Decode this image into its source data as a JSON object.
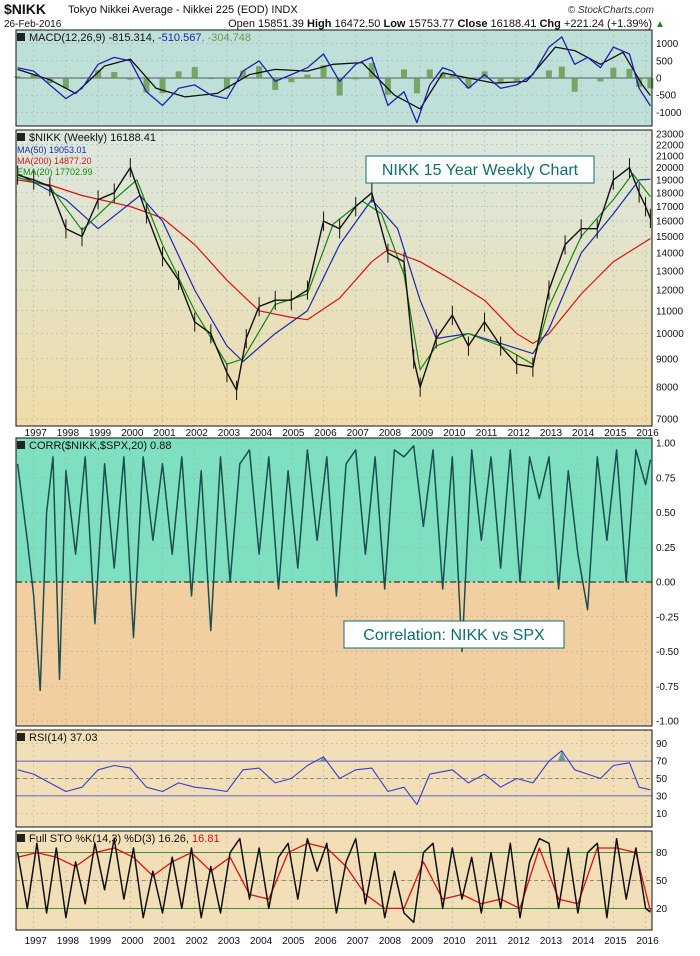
{
  "header": {
    "symbol": "$NIKK",
    "name": "Tokyo Nikkei Average - Nikkei 225 (EOD)",
    "exchange": "INDX",
    "brand": "© StockCharts.com",
    "date": "26-Feb-2016",
    "open_label": "Open",
    "open": "15851.39",
    "high_label": "High",
    "high": "16472.50",
    "low_label": "Low",
    "low": "15753.77",
    "close_label": "Close",
    "close": "16188.41",
    "chg_label": "Chg",
    "chg": "+221.24 (+1.39%)",
    "chg_arrow": "▲"
  },
  "colors": {
    "frame": "#111111",
    "macd_bg": "#bfe0d8",
    "price_bg_top": "#dbe8e0",
    "price_bg_bottom": "#f0dca8",
    "corr_pos_bg": "#7ee0c0",
    "corr_neg_bg": "#f2cfa0",
    "ind_bg": "#f2dfb8",
    "price": "#111111",
    "ma50": "#1a2ab0",
    "ma200": "#dd1111",
    "ema20": "#118811",
    "macd": "#1f1fb0",
    "macd_signal": "#111111",
    "macd_hist": "#6a9a55",
    "corr": "#1c4f50",
    "rsi": "#3340cc",
    "sto_k": "#111111",
    "sto_d": "#dd1111",
    "title_box": "#0f6e6e"
  },
  "panels": {
    "macd": {
      "label": "MACD(12,26,9) -815.314, ",
      "signal_value": "-510.567",
      "hist_value": ", -304.748",
      "ticks": [
        "1000",
        "500",
        "0",
        "-500",
        "-1000"
      ]
    },
    "price": {
      "label": "$NIKK (Weekly) 16188.41",
      "ma50_label": "MA(50) 19053.01",
      "ma200_label": "MA(200) 14877.20",
      "ema20_label": "EMA(20) 17702.99",
      "title_annotation": "NIKK 15 Year Weekly Chart",
      "ticks": [
        "23000",
        "22000",
        "21000",
        "20000",
        "19000",
        "18000",
        "17000",
        "16000",
        "15000",
        "14000",
        "13000",
        "12000",
        "11000",
        "10000",
        "9000",
        "8000",
        "7000"
      ]
    },
    "corr": {
      "label": "CORR($NIKK,$SPX,20) 0.88",
      "annotation": "Correlation:  NIKK vs SPX",
      "ticks": [
        "1.00",
        "0.75",
        "0.50",
        "0.25",
        "0.00",
        "-0.25",
        "-0.50",
        "-0.75",
        "-1.00"
      ]
    },
    "rsi": {
      "label": "RSI(14) 37.03",
      "ticks": [
        "90",
        "70",
        "50",
        "30",
        "10"
      ]
    },
    "sto": {
      "label": "Full STO %K(14,3) %D(3) 16.26, ",
      "d_value": "16.81",
      "ticks": [
        "80",
        "50",
        "20"
      ]
    }
  },
  "chart_data": [
    {
      "type": "line",
      "title": "$NIKK (Weekly)",
      "x_labels": [
        "1997",
        "1998",
        "1999",
        "2000",
        "2001",
        "2002",
        "2003",
        "2004",
        "2005",
        "2006",
        "2007",
        "2008",
        "2009",
        "2010",
        "2011",
        "2012",
        "2013",
        "2014",
        "2015",
        "2016"
      ],
      "ylim": [
        7000,
        23000
      ],
      "y_scale": "log",
      "series": [
        {
          "name": "$NIKK (Weekly)",
          "x": [
            1996.5,
            1997.0,
            1997.5,
            1998.0,
            1998.5,
            1999.0,
            1999.5,
            2000.0,
            2000.5,
            2001.0,
            2001.5,
            2002.0,
            2002.5,
            2003.0,
            2003.3,
            2003.6,
            2004.0,
            2004.5,
            2005.0,
            2005.5,
            2006.0,
            2006.5,
            2007.0,
            2007.5,
            2008.0,
            2008.5,
            2008.8,
            2009.0,
            2009.5,
            2010.0,
            2010.5,
            2011.0,
            2011.5,
            2012.0,
            2012.5,
            2013.0,
            2013.5,
            2014.0,
            2014.5,
            2015.0,
            2015.5,
            2015.8,
            2016.0,
            2016.15
          ],
          "values": [
            19400,
            19000,
            18500,
            15500,
            15000,
            17500,
            18000,
            20000,
            16500,
            13800,
            12500,
            10500,
            10000,
            8500,
            7900,
            9800,
            11200,
            11500,
            11500,
            12000,
            16000,
            15500,
            17000,
            18000,
            14000,
            13500,
            9000,
            8000,
            9800,
            10800,
            9500,
            10500,
            9500,
            8800,
            8700,
            12000,
            14500,
            15500,
            15500,
            19000,
            20000,
            18000,
            17000,
            16188
          ]
        },
        {
          "name": "MA(50)",
          "x": [
            1996.5,
            1998.0,
            1999.0,
            2000.3,
            2001.0,
            2002.0,
            2003.0,
            2003.5,
            2004.5,
            2005.5,
            2006.5,
            2007.5,
            2008.3,
            2009.0,
            2009.5,
            2010.5,
            2011.5,
            2012.5,
            2013.0,
            2014.0,
            2015.0,
            2015.8,
            2016.15
          ],
          "values": [
            19500,
            17500,
            15500,
            17800,
            16000,
            12000,
            9500,
            8900,
            10000,
            11000,
            14500,
            17500,
            15500,
            11500,
            9800,
            10000,
            9600,
            9200,
            10200,
            14000,
            16500,
            19000,
            19053
          ]
        },
        {
          "name": "MA(200)",
          "x": [
            1996.5,
            1997.5,
            1998.5,
            2000.0,
            2001.0,
            2002.0,
            2003.0,
            2004.0,
            2005.0,
            2005.5,
            2006.5,
            2007.5,
            2008.0,
            2009.0,
            2010.0,
            2011.0,
            2012.0,
            2012.5,
            2013.0,
            2014.0,
            2015.0,
            2016.15
          ],
          "values": [
            19000,
            18600,
            17800,
            17000,
            16200,
            14500,
            12500,
            11000,
            10700,
            10600,
            11600,
            13500,
            14200,
            13500,
            12500,
            11500,
            10000,
            9600,
            10000,
            11800,
            13500,
            14877
          ]
        },
        {
          "name": "EMA(20)",
          "x": [
            1996.5,
            1997.5,
            1998.5,
            1999.5,
            2000.2,
            2001.0,
            2002.0,
            2003.0,
            2003.5,
            2004.5,
            2005.5,
            2006.3,
            2007.2,
            2007.8,
            2008.5,
            2009.0,
            2009.5,
            2010.5,
            2011.5,
            2012.5,
            2013.0,
            2014.0,
            2015.0,
            2015.6,
            2016.15
          ],
          "values": [
            19200,
            18500,
            15400,
            17500,
            19000,
            14500,
            11000,
            8800,
            9000,
            11300,
            11800,
            15800,
            17400,
            16500,
            12800,
            8600,
            9500,
            10000,
            9500,
            8800,
            11200,
            15000,
            17500,
            19500,
            17703
          ]
        }
      ]
    },
    {
      "type": "line",
      "title": "MACD(12,26,9)",
      "ylim": [
        -1400,
        1400
      ],
      "series": [
        {
          "name": "MACD",
          "x": [
            1996.5,
            1997.0,
            1997.5,
            1998.0,
            1998.5,
            1999.0,
            1999.5,
            2000.0,
            2000.5,
            2001.0,
            2001.5,
            2002.0,
            2002.5,
            2003.0,
            2003.5,
            2004.0,
            2004.5,
            2005.0,
            2005.5,
            2006.0,
            2006.5,
            2007.0,
            2007.5,
            2008.0,
            2008.5,
            2008.9,
            2009.3,
            2009.7,
            2010.0,
            2010.5,
            2011.0,
            2011.5,
            2012.0,
            2012.5,
            2013.0,
            2013.4,
            2013.8,
            2014.2,
            2014.6,
            2015.0,
            2015.5,
            2015.8,
            2016.15
          ],
          "values": [
            300,
            200,
            -200,
            -600,
            -300,
            400,
            600,
            500,
            -400,
            -800,
            -300,
            -200,
            -500,
            -600,
            200,
            500,
            -100,
            100,
            300,
            700,
            -100,
            400,
            600,
            -800,
            -400,
            -1300,
            -200,
            300,
            200,
            -300,
            100,
            -300,
            -200,
            100,
            900,
            1200,
            400,
            600,
            300,
            900,
            700,
            -300,
            -815
          ]
        },
        {
          "name": "Signal",
          "x": [
            1996.5,
            1997.5,
            1998.3,
            1999.2,
            2000.0,
            2000.8,
            2001.7,
            2002.7,
            2003.7,
            2004.5,
            2005.5,
            2006.3,
            2007.2,
            2008.2,
            2009.0,
            2009.7,
            2010.5,
            2011.3,
            2012.3,
            2013.2,
            2013.8,
            2014.6,
            2015.3,
            2015.9,
            2016.15
          ],
          "values": [
            250,
            -50,
            -450,
            350,
            550,
            -300,
            -550,
            -450,
            100,
            250,
            200,
            400,
            450,
            -500,
            -900,
            150,
            0,
            -150,
            -100,
            900,
            800,
            400,
            750,
            -200,
            -511
          ]
        }
      ]
    },
    {
      "type": "line",
      "title": "CORR($NIKK,$SPX,20)",
      "ylim": [
        -1,
        1
      ],
      "series": [
        {
          "name": "CORR",
          "x": [
            1996.5,
            1996.8,
            1997.0,
            1997.2,
            1997.4,
            1997.6,
            1997.8,
            1998.0,
            1998.3,
            1998.6,
            1998.9,
            1999.2,
            1999.5,
            1999.8,
            2000.1,
            2000.4,
            2000.7,
            2001.0,
            2001.3,
            2001.6,
            2001.9,
            2002.2,
            2002.5,
            2002.8,
            2003.1,
            2003.4,
            2003.7,
            2004.0,
            2004.3,
            2004.6,
            2004.9,
            2005.2,
            2005.5,
            2005.8,
            2006.1,
            2006.4,
            2006.7,
            2007.0,
            2007.3,
            2007.6,
            2007.9,
            2008.2,
            2008.5,
            2008.8,
            2009.1,
            2009.4,
            2009.7,
            2010.0,
            2010.3,
            2010.6,
            2010.9,
            2011.2,
            2011.5,
            2011.8,
            2012.1,
            2012.4,
            2012.7,
            2013.0,
            2013.3,
            2013.6,
            2013.9,
            2014.2,
            2014.5,
            2014.8,
            2015.1,
            2015.4,
            2015.7,
            2016.0,
            2016.15
          ],
          "values": [
            0.85,
            0.3,
            -0.1,
            -0.78,
            0.5,
            0.9,
            -0.7,
            0.8,
            0.2,
            0.9,
            -0.3,
            0.85,
            0.1,
            0.9,
            -0.4,
            0.9,
            0.3,
            0.85,
            0.2,
            0.9,
            -0.1,
            0.8,
            -0.35,
            0.9,
            0.0,
            0.85,
            0.95,
            0.2,
            0.9,
            -0.05,
            0.8,
            0.1,
            0.95,
            0.3,
            0.9,
            -0.1,
            0.85,
            0.95,
            0.2,
            0.9,
            -0.05,
            0.95,
            0.9,
            0.98,
            0.4,
            0.95,
            -0.05,
            0.9,
            -0.5,
            0.95,
            0.3,
            0.9,
            0.1,
            0.95,
            0.0,
            0.9,
            0.6,
            0.9,
            -0.05,
            0.8,
            0.2,
            -0.2,
            0.9,
            0.3,
            0.95,
            0.0,
            0.95,
            0.7,
            0.88
          ]
        }
      ]
    },
    {
      "type": "line",
      "title": "RSI(14)",
      "ylim": [
        0,
        100
      ],
      "series": [
        {
          "name": "RSI",
          "x": [
            1996.5,
            1997.0,
            1997.5,
            1998.0,
            1998.5,
            1999.0,
            1999.5,
            2000.0,
            2000.5,
            2001.0,
            2001.5,
            2002.0,
            2002.5,
            2003.0,
            2003.5,
            2004.0,
            2004.5,
            2005.0,
            2005.5,
            2006.0,
            2006.5,
            2007.0,
            2007.5,
            2008.0,
            2008.5,
            2008.9,
            2009.3,
            2010.0,
            2010.5,
            2011.0,
            2011.5,
            2012.0,
            2012.5,
            2013.0,
            2013.4,
            2013.8,
            2014.2,
            2014.6,
            2015.0,
            2015.5,
            2015.8,
            2016.15
          ],
          "values": [
            60,
            55,
            45,
            35,
            40,
            60,
            65,
            62,
            40,
            35,
            45,
            40,
            38,
            35,
            60,
            62,
            45,
            50,
            65,
            75,
            50,
            60,
            62,
            35,
            40,
            20,
            55,
            60,
            45,
            55,
            40,
            50,
            45,
            70,
            82,
            60,
            55,
            50,
            65,
            68,
            40,
            37
          ]
        }
      ]
    },
    {
      "type": "line",
      "title": "Full STO %K(14,3) %D(3)",
      "ylim": [
        0,
        100
      ],
      "series": [
        {
          "name": "%K",
          "x": [
            1996.5,
            1996.8,
            1997.1,
            1997.4,
            1997.7,
            1998.0,
            1998.3,
            1998.6,
            1998.9,
            1999.2,
            1999.5,
            1999.8,
            2000.1,
            2000.4,
            2000.7,
            2001.0,
            2001.3,
            2001.6,
            2001.9,
            2002.2,
            2002.5,
            2002.8,
            2003.1,
            2003.4,
            2003.7,
            2004.0,
            2004.3,
            2004.6,
            2004.9,
            2005.2,
            2005.5,
            2005.8,
            2006.1,
            2006.4,
            2006.7,
            2007.0,
            2007.3,
            2007.6,
            2007.9,
            2008.2,
            2008.5,
            2008.8,
            2009.1,
            2009.4,
            2009.7,
            2010.0,
            2010.3,
            2010.6,
            2010.9,
            2011.2,
            2011.5,
            2011.8,
            2012.1,
            2012.4,
            2012.7,
            2013.0,
            2013.3,
            2013.6,
            2013.9,
            2014.2,
            2014.5,
            2014.8,
            2015.1,
            2015.4,
            2015.7,
            2016.0,
            2016.15
          ],
          "values": [
            80,
            20,
            90,
            15,
            85,
            10,
            70,
            25,
            90,
            40,
            95,
            30,
            85,
            10,
            60,
            15,
            75,
            20,
            85,
            10,
            65,
            15,
            80,
            95,
            30,
            85,
            20,
            75,
            90,
            30,
            95,
            60,
            90,
            15,
            70,
            95,
            25,
            80,
            10,
            60,
            15,
            5,
            80,
            90,
            20,
            85,
            30,
            75,
            15,
            80,
            20,
            90,
            10,
            70,
            95,
            90,
            20,
            85,
            15,
            80,
            90,
            10,
            95,
            30,
            85,
            20,
            16
          ]
        },
        {
          "name": "%D",
          "x": [
            1996.5,
            1997.1,
            1997.7,
            1998.3,
            1998.9,
            1999.5,
            2000.1,
            2000.7,
            2001.3,
            2001.9,
            2002.5,
            2003.1,
            2003.7,
            2004.3,
            2004.9,
            2005.5,
            2006.1,
            2006.7,
            2007.3,
            2007.9,
            2008.5,
            2009.1,
            2009.7,
            2010.3,
            2010.9,
            2011.5,
            2012.1,
            2012.7,
            2013.3,
            2013.9,
            2014.5,
            2015.1,
            2015.7,
            2016.15
          ],
          "values": [
            75,
            80,
            75,
            65,
            80,
            85,
            75,
            55,
            70,
            80,
            60,
            75,
            35,
            30,
            80,
            90,
            85,
            65,
            35,
            20,
            20,
            70,
            30,
            35,
            25,
            30,
            20,
            85,
            30,
            25,
            85,
            85,
            80,
            17
          ]
        }
      ]
    }
  ]
}
